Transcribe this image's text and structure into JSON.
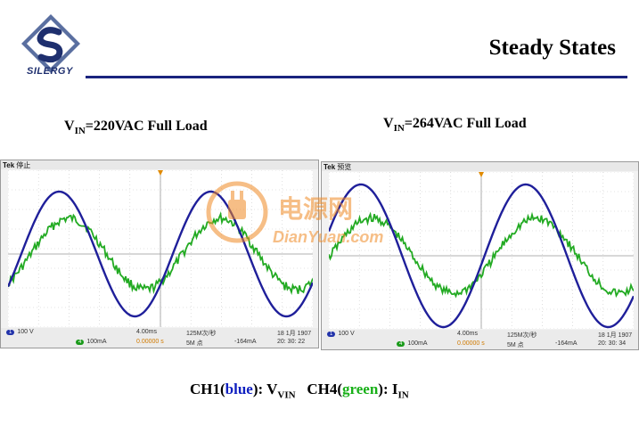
{
  "header": {
    "title": "Steady States",
    "logo_text": "SILERGY"
  },
  "captions": {
    "left": {
      "prefix": "V",
      "sub": "IN",
      "suffix": "=220VAC  Full Load"
    },
    "right": {
      "prefix": "V",
      "sub": "IN",
      "suffix": "=264VAC  Full Load"
    }
  },
  "scopes": [
    {
      "status": "停止",
      "brand": "Tek",
      "ch1_scale": "100 V",
      "ch4_scale": "100mA",
      "timebase": "4.00ms",
      "sample_rate": "125M次/秒",
      "points": "5M 点",
      "trigger_pos": "0.00000 s",
      "trigger_level": "-164mA",
      "date": "18 1月  1907",
      "time": "20: 30: 22"
    },
    {
      "status": "预览",
      "brand": "Tek",
      "ch1_scale": "100 V",
      "ch4_scale": "100mA",
      "timebase": "4.00ms",
      "sample_rate": "125M次/秒",
      "points": "5M 点",
      "trigger_pos": "0.00000 s",
      "trigger_level": "-164mA",
      "date": "18 1月  1907",
      "time": "20: 30: 34"
    }
  ],
  "legend": {
    "ch1_pre": "CH1(",
    "ch1_color_word": "blue",
    "ch1_post": "): V",
    "ch1_sub": "VIN",
    "ch4_pre": "CH4(",
    "ch4_color_word": "green",
    "ch4_post": "): I",
    "ch4_sub": "IN"
  },
  "watermark": {
    "cn": "电源网",
    "en": "DianYuan.com"
  },
  "colors": {
    "ch1": "#1f1f9a",
    "ch4": "#22aa22",
    "rule": "#1a237e",
    "watermark": "#f08a24"
  }
}
